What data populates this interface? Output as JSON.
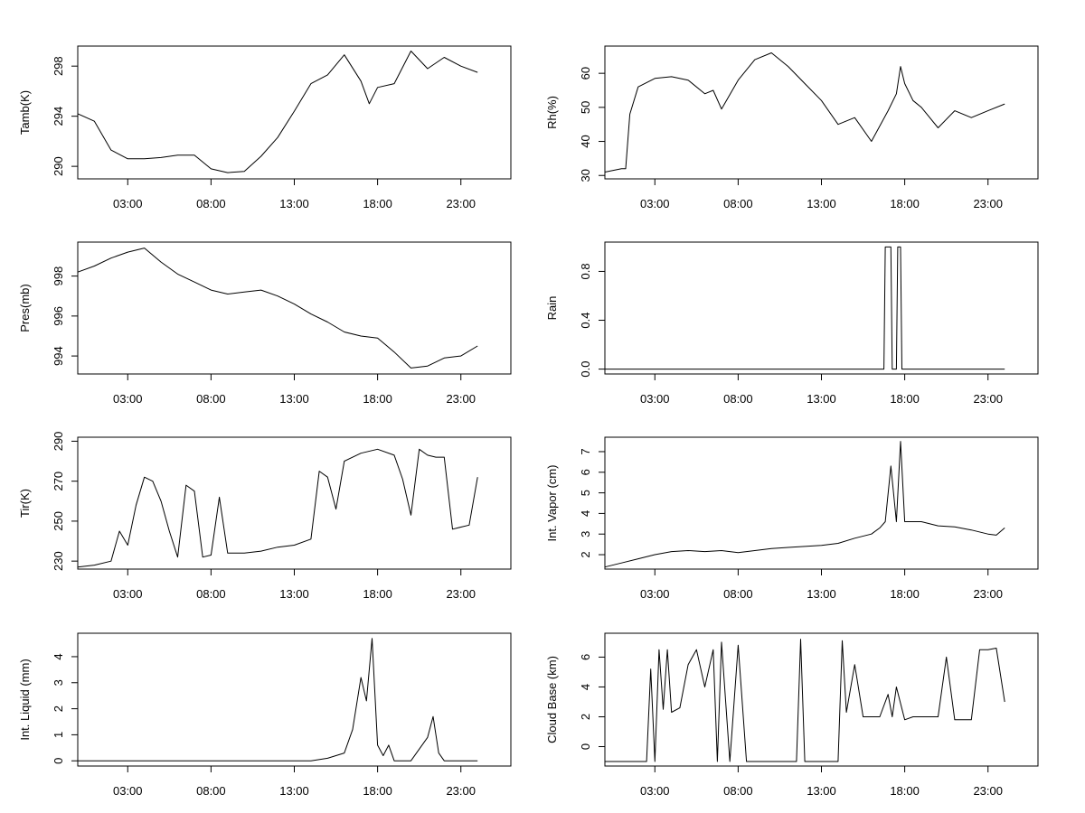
{
  "chart_data": [
    {
      "type": "line",
      "ylabel": "Tamb(K)",
      "x_ticks": [
        "03:00",
        "08:00",
        "13:00",
        "18:00",
        "23:00"
      ],
      "y_ticks": [
        290,
        294,
        298
      ],
      "ylim": [
        289,
        299.6
      ],
      "x": [
        "00:00",
        "01:00",
        "02:00",
        "03:00",
        "04:00",
        "05:00",
        "06:00",
        "07:00",
        "08:00",
        "09:00",
        "10:00",
        "11:00",
        "12:00",
        "13:00",
        "14:00",
        "15:00",
        "16:00",
        "17:00",
        "17:30",
        "18:00",
        "19:00",
        "20:00",
        "21:00",
        "22:00",
        "23:00",
        "24:00"
      ],
      "values": [
        294.2,
        293.6,
        291.3,
        290.6,
        290.6,
        290.7,
        290.9,
        290.9,
        289.8,
        289.5,
        289.6,
        290.8,
        292.3,
        294.4,
        296.6,
        297.3,
        298.9,
        296.8,
        295.0,
        296.3,
        296.6,
        299.2,
        297.8,
        298.7,
        298.0,
        297.5
      ]
    },
    {
      "type": "line",
      "ylabel": "Rh(%)",
      "x_ticks": [
        "03:00",
        "08:00",
        "13:00",
        "18:00",
        "23:00"
      ],
      "y_ticks": [
        30,
        40,
        50,
        60
      ],
      "ylim": [
        29,
        68
      ],
      "x": [
        "00:00",
        "01:00",
        "01:15",
        "01:30",
        "02:00",
        "03:00",
        "04:00",
        "05:00",
        "06:00",
        "06:30",
        "07:00",
        "08:00",
        "09:00",
        "10:00",
        "11:00",
        "12:00",
        "13:00",
        "14:00",
        "15:00",
        "16:00",
        "17:00",
        "17:30",
        "17:45",
        "18:00",
        "18:30",
        "19:00",
        "20:00",
        "21:00",
        "22:00",
        "23:00",
        "24:00"
      ],
      "values": [
        31,
        32,
        32,
        48,
        56,
        58.5,
        59,
        58,
        54,
        55,
        49.5,
        58,
        64,
        66,
        62,
        57,
        52,
        45,
        47,
        40,
        49,
        54,
        62,
        57,
        52,
        50,
        44,
        49,
        47,
        49,
        51
      ]
    },
    {
      "type": "line",
      "ylabel": "Pres(mb)",
      "x_ticks": [
        "03:00",
        "08:00",
        "13:00",
        "18:00",
        "23:00"
      ],
      "y_ticks": [
        994,
        996,
        998
      ],
      "ylim": [
        993.1,
        999.7
      ],
      "x": [
        "00:00",
        "01:00",
        "02:00",
        "03:00",
        "04:00",
        "05:00",
        "06:00",
        "07:00",
        "08:00",
        "09:00",
        "10:00",
        "11:00",
        "12:00",
        "13:00",
        "14:00",
        "15:00",
        "16:00",
        "17:00",
        "18:00",
        "19:00",
        "20:00",
        "21:00",
        "22:00",
        "23:00",
        "24:00"
      ],
      "values": [
        998.2,
        998.5,
        998.9,
        999.2,
        999.4,
        998.7,
        998.1,
        997.7,
        997.3,
        997.1,
        997.2,
        997.3,
        997.0,
        996.6,
        996.1,
        995.7,
        995.2,
        995.0,
        994.9,
        994.2,
        993.4,
        993.5,
        993.9,
        994.0,
        994.5
      ]
    },
    {
      "type": "line",
      "ylabel": "Rain",
      "x_ticks": [
        "03:00",
        "08:00",
        "13:00",
        "18:00",
        "23:00"
      ],
      "y_ticks": [
        "0.0",
        "0.4",
        "0.8"
      ],
      "ylim": [
        -0.04,
        1.04
      ],
      "x": [
        "00:00",
        "16:45",
        "16:50",
        "17:10",
        "17:15",
        "17:30",
        "17:35",
        "17:45",
        "17:50",
        "24:00"
      ],
      "values": [
        0,
        0,
        1,
        1,
        0,
        0,
        1,
        1,
        0,
        0
      ]
    },
    {
      "type": "line",
      "ylabel": "Tir(K)",
      "x_ticks": [
        "03:00",
        "08:00",
        "13:00",
        "18:00",
        "23:00"
      ],
      "y_ticks": [
        230,
        250,
        270,
        290
      ],
      "ylim": [
        226,
        292
      ],
      "x": [
        "00:00",
        "01:00",
        "02:00",
        "02:30",
        "03:00",
        "03:30",
        "04:00",
        "04:30",
        "05:00",
        "05:30",
        "06:00",
        "06:30",
        "07:00",
        "07:30",
        "08:00",
        "08:30",
        "09:00",
        "10:00",
        "11:00",
        "12:00",
        "13:00",
        "14:00",
        "14:30",
        "15:00",
        "15:30",
        "16:00",
        "17:00",
        "18:00",
        "19:00",
        "19:30",
        "20:00",
        "20:30",
        "21:00",
        "21:30",
        "22:00",
        "22:30",
        "23:00",
        "23:30",
        "24:00"
      ],
      "values": [
        227,
        228,
        230,
        245,
        238,
        258,
        272,
        270,
        260,
        245,
        232,
        268,
        265,
        232,
        233,
        262,
        234,
        234,
        235,
        237,
        238,
        241,
        275,
        272,
        256,
        280,
        284,
        286,
        283,
        271,
        253,
        286,
        283,
        282,
        282,
        246,
        247,
        248,
        272
      ]
    },
    {
      "type": "line",
      "ylabel": "Int. Vapor (cm)",
      "x_ticks": [
        "03:00",
        "08:00",
        "13:00",
        "18:00",
        "23:00"
      ],
      "y_ticks": [
        2,
        3,
        4,
        5,
        6,
        7
      ],
      "ylim": [
        1.3,
        7.7
      ],
      "x": [
        "00:00",
        "01:00",
        "02:00",
        "03:00",
        "04:00",
        "05:00",
        "06:00",
        "07:00",
        "08:00",
        "09:00",
        "10:00",
        "11:00",
        "12:00",
        "13:00",
        "14:00",
        "15:00",
        "16:00",
        "16:30",
        "16:50",
        "17:10",
        "17:30",
        "17:45",
        "18:00",
        "18:30",
        "19:00",
        "20:00",
        "21:00",
        "22:00",
        "23:00",
        "23:30",
        "24:00"
      ],
      "values": [
        1.4,
        1.6,
        1.8,
        2.0,
        2.15,
        2.2,
        2.15,
        2.2,
        2.1,
        2.2,
        2.3,
        2.35,
        2.4,
        2.45,
        2.55,
        2.8,
        3.0,
        3.3,
        3.6,
        6.3,
        3.6,
        7.5,
        3.6,
        3.6,
        3.6,
        3.4,
        3.35,
        3.2,
        3.0,
        2.95,
        3.3
      ]
    },
    {
      "type": "line",
      "ylabel": "Int. Liquid (mm)",
      "x_ticks": [
        "03:00",
        "08:00",
        "13:00",
        "18:00",
        "23:00"
      ],
      "y_ticks": [
        0,
        1,
        2,
        3,
        4
      ],
      "ylim": [
        -0.2,
        4.9
      ],
      "x": [
        "00:00",
        "06:00",
        "07:00",
        "14:00",
        "15:00",
        "16:00",
        "16:30",
        "17:00",
        "17:20",
        "17:40",
        "18:00",
        "18:20",
        "18:40",
        "19:00",
        "19:30",
        "20:00",
        "21:00",
        "21:20",
        "21:40",
        "22:00",
        "24:00"
      ],
      "values": [
        0,
        0,
        0,
        0,
        0.1,
        0.3,
        1.2,
        3.2,
        2.3,
        4.7,
        0.6,
        0.2,
        0.6,
        0,
        0,
        0,
        0.9,
        1.7,
        0.3,
        0,
        0
      ]
    },
    {
      "type": "line",
      "ylabel": "Cloud Base (km)",
      "x_ticks": [
        "03:00",
        "08:00",
        "13:00",
        "18:00",
        "23:00"
      ],
      "y_ticks": [
        0,
        2,
        4,
        6
      ],
      "ylim": [
        -1.3,
        7.6
      ],
      "x": [
        "00:00",
        "02:30",
        "02:45",
        "03:00",
        "03:15",
        "03:30",
        "03:45",
        "04:00",
        "04:30",
        "05:00",
        "05:30",
        "06:00",
        "06:30",
        "06:45",
        "07:00",
        "07:30",
        "08:00",
        "08:30",
        "09:00",
        "10:00",
        "11:00",
        "11:30",
        "11:45",
        "12:00",
        "12:15",
        "13:00",
        "14:00",
        "14:15",
        "14:30",
        "15:00",
        "15:30",
        "16:00",
        "16:30",
        "17:00",
        "17:15",
        "17:30",
        "18:00",
        "18:30",
        "19:00",
        "20:00",
        "20:30",
        "21:00",
        "22:00",
        "22:30",
        "23:00",
        "23:30",
        "24:00"
      ],
      "values": [
        -1,
        -1,
        5.2,
        -1,
        6.5,
        2.5,
        6.5,
        2.3,
        2.6,
        5.5,
        6.5,
        4.0,
        6.5,
        -1,
        7.0,
        -1,
        6.8,
        -1,
        -1,
        -1,
        -1,
        -1,
        7.2,
        -1,
        -1,
        -1,
        -1,
        7.1,
        2.3,
        5.5,
        2.0,
        2.0,
        2.0,
        3.5,
        2.0,
        4.0,
        1.8,
        2.0,
        2.0,
        2.0,
        6.0,
        1.8,
        1.8,
        6.5,
        6.5,
        6.6,
        3.0
      ]
    }
  ]
}
